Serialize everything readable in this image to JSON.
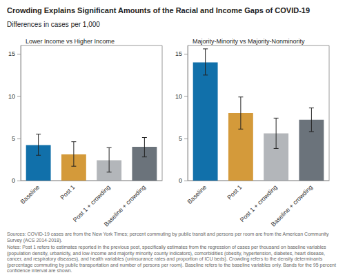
{
  "header": {
    "title": "Crowding Explains Significant Amounts of the Racial and Income Gaps of COVID-19",
    "subtitle": "Differences in cases per 1,000"
  },
  "chart_data": [
    {
      "type": "bar",
      "title": "Lower Income vs Higher Income",
      "categories": [
        "Baseline",
        "Post 1",
        "Post 1 + crowding",
        "Baseline + crowding"
      ],
      "values": [
        4.2,
        3.1,
        2.4,
        4.0
      ],
      "ci_low": [
        3.0,
        1.7,
        1.0,
        2.8
      ],
      "ci_high": [
        5.5,
        4.6,
        3.9,
        5.1
      ],
      "colors": [
        "#1170aa",
        "#d49a3a",
        "#b3b6ba",
        "#6b737b"
      ],
      "ylim": [
        0,
        16
      ],
      "yticks": [
        0,
        5,
        10,
        15
      ],
      "grid": false
    },
    {
      "type": "bar",
      "title": "Majority-Minority vs Majority-Nonminority",
      "categories": [
        "Baseline",
        "Post 1",
        "Post 1 + crowding",
        "Baseline + crowding"
      ],
      "values": [
        14.0,
        8.0,
        5.6,
        7.2
      ],
      "ci_low": [
        12.5,
        6.1,
        3.8,
        5.8
      ],
      "ci_high": [
        15.6,
        9.9,
        7.4,
        8.6
      ],
      "colors": [
        "#1170aa",
        "#d49a3a",
        "#b3b6ba",
        "#6b737b"
      ],
      "ylim": [
        0,
        16
      ],
      "yticks": [
        0,
        5,
        10,
        15
      ],
      "grid": false
    }
  ],
  "footer": {
    "source": "Sources: COVID-19 cases are from the New York Times; percent commuting by public transit and persons per room are from the American Community Survey (ACS 2014-2018).",
    "notes": "Notes: Post 1 refers to estimates reported in the previous post, specifically estimates from the regression of cases per thousand on baseline variables (population density, urbanicity, and low-income and majority minority county indicators), comorbidities (obesity, hypertension, diabetes, heart disease, cancer, and respiratory diseases), and health variables (uninsurance rates and proportion of ICU beds). Crowding refers to the density determinants (percentage commuting by public transportation and number of persons per room). Baseline refers to the baseline variables only. Bands for the 95 percent confidence interval are shown."
  }
}
